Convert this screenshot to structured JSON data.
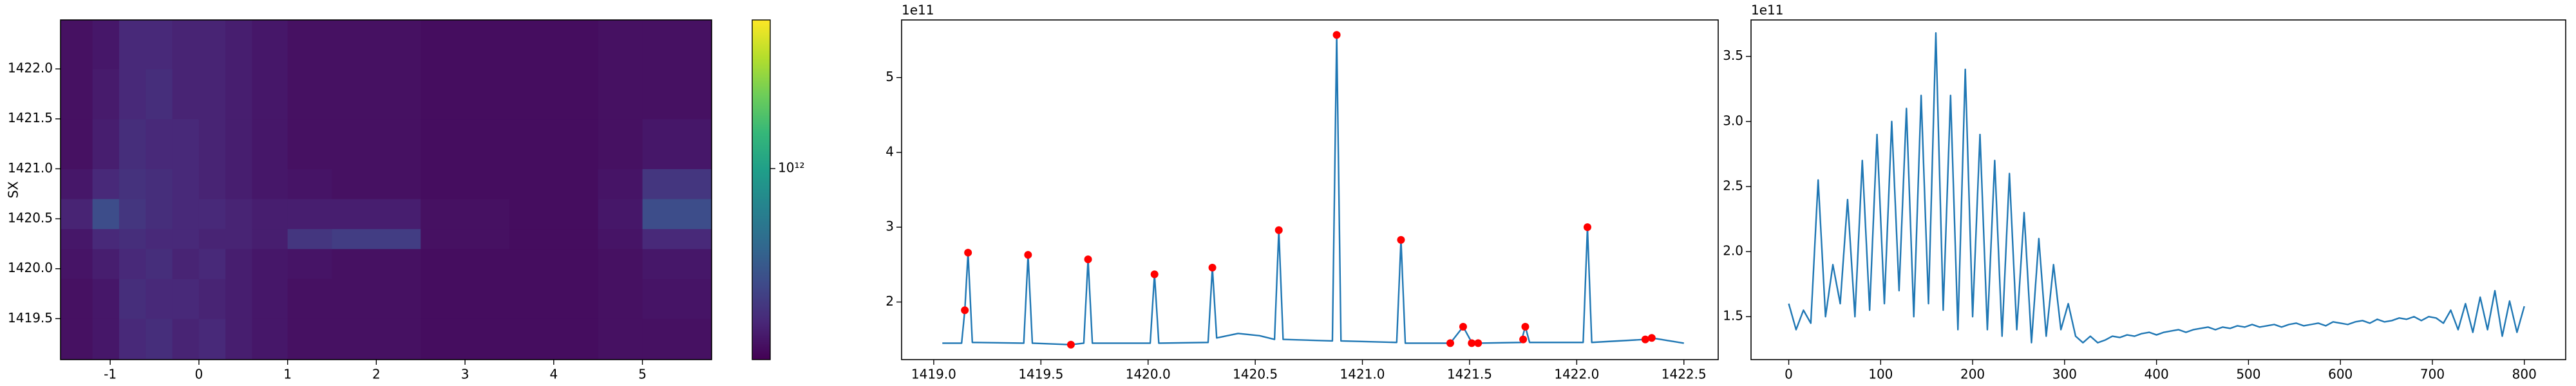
{
  "chart_data": [
    {
      "type": "heatmap",
      "ylabel": "SX",
      "colormap": "viridis",
      "log_color": true,
      "x_edges": [
        -1.56,
        -1.2,
        -0.9,
        -0.6,
        -0.3,
        0,
        0.3,
        0.6,
        1.0,
        1.5,
        2.5,
        3.5,
        4.5,
        5.0,
        5.78
      ],
      "y_edges": [
        1419.09,
        1419.5,
        1419.9,
        1420.2,
        1420.4,
        1420.7,
        1421.0,
        1421.5,
        1422.0,
        1422.49
      ],
      "z": [
        [
          120000000000.0,
          130000000000.0,
          160000000000.0,
          170000000000.0,
          150000000000.0,
          160000000000.0,
          140000000000.0,
          130000000000.0,
          120000000000.0,
          120000000000.0,
          115000000000.0,
          115000000000.0,
          120000000000.0,
          120000000000.0
        ],
        [
          120000000000.0,
          130000000000.0,
          170000000000.0,
          160000000000.0,
          160000000000.0,
          150000000000.0,
          140000000000.0,
          130000000000.0,
          120000000000.0,
          120000000000.0,
          115000000000.0,
          115000000000.0,
          120000000000.0,
          125000000000.0
        ],
        [
          125000000000.0,
          140000000000.0,
          160000000000.0,
          170000000000.0,
          150000000000.0,
          160000000000.0,
          140000000000.0,
          130000000000.0,
          125000000000.0,
          120000000000.0,
          115000000000.0,
          115000000000.0,
          120000000000.0,
          130000000000.0
        ],
        [
          130000000000.0,
          160000000000.0,
          170000000000.0,
          160000000000.0,
          160000000000.0,
          150000000000.0,
          150000000000.0,
          140000000000.0,
          190000000000.0,
          210000000000.0,
          120000000000.0,
          115000000000.0,
          125000000000.0,
          160000000000.0
        ],
        [
          150000000000.0,
          260000000000.0,
          190000000000.0,
          170000000000.0,
          160000000000.0,
          160000000000.0,
          150000000000.0,
          140000000000.0,
          140000000000.0,
          140000000000.0,
          120000000000.0,
          115000000000.0,
          130000000000.0,
          260000000000.0
        ],
        [
          130000000000.0,
          160000000000.0,
          180000000000.0,
          170000000000.0,
          160000000000.0,
          150000000000.0,
          140000000000.0,
          130000000000.0,
          125000000000.0,
          120000000000.0,
          115000000000.0,
          115000000000.0,
          125000000000.0,
          190000000000.0
        ],
        [
          120000000000.0,
          140000000000.0,
          170000000000.0,
          160000000000.0,
          160000000000.0,
          150000000000.0,
          140000000000.0,
          130000000000.0,
          120000000000.0,
          120000000000.0,
          115000000000.0,
          115000000000.0,
          120000000000.0,
          130000000000.0
        ],
        [
          120000000000.0,
          135000000000.0,
          160000000000.0,
          170000000000.0,
          150000000000.0,
          150000000000.0,
          140000000000.0,
          130000000000.0,
          120000000000.0,
          120000000000.0,
          115000000000.0,
          115000000000.0,
          120000000000.0,
          120000000000.0
        ],
        [
          120000000000.0,
          130000000000.0,
          160000000000.0,
          160000000000.0,
          150000000000.0,
          150000000000.0,
          140000000000.0,
          130000000000.0,
          120000000000.0,
          120000000000.0,
          115000000000.0,
          115000000000.0,
          120000000000.0,
          120000000000.0
        ]
      ],
      "xlim": [
        -1.56,
        5.78
      ],
      "ylim": [
        1419.09,
        1422.49
      ],
      "xticks": [
        -1,
        0,
        1,
        2,
        3,
        4,
        5
      ],
      "yticks": [
        1419.5,
        {
          "value": 1420,
          "label": "1420.0"
        },
        1420.5,
        {
          "value": 1421,
          "label": "1421.0"
        },
        1421.5,
        {
          "value": 1422,
          "label": "1422.0"
        }
      ],
      "clim": [
        100000000000.0,
        6000000000000.0
      ],
      "cticks": [
        {
          "value": 1000000000000.0,
          "label": "10¹²"
        }
      ]
    },
    {
      "type": "line",
      "offset_label": "1e11",
      "xlim": [
        1418.85,
        1422.66
      ],
      "ylim": [
        1.23,
        5.77
      ],
      "xticks": [
        {
          "value": 1419,
          "label": "1419.0"
        },
        1419.5,
        {
          "value": 1420,
          "label": "1420.0"
        },
        1420.5,
        {
          "value": 1421,
          "label": "1421.0"
        },
        1421.5,
        {
          "value": 1422,
          "label": "1422.0"
        },
        1422.5
      ],
      "yticks": [
        2,
        3,
        4,
        5
      ],
      "series": [
        {
          "style": "line",
          "color": "#1f77b4",
          "x": [
            1419.04,
            1419.13,
            1419.145,
            1419.16,
            1419.18,
            1419.42,
            1419.44,
            1419.46,
            1419.64,
            1419.7,
            1419.72,
            1419.74,
            1420.01,
            1420.03,
            1420.05,
            1420.28,
            1420.3,
            1420.32,
            1420.42,
            1420.52,
            1420.59,
            1420.61,
            1420.63,
            1420.86,
            1420.88,
            1420.9,
            1421.16,
            1421.18,
            1421.2,
            1421.41,
            1421.47,
            1421.51,
            1421.54,
            1421.74,
            1421.76,
            1421.78,
            1422.03,
            1422.05,
            1422.07,
            1422.32,
            1422.35,
            1422.5
          ],
          "values": [
            1.45,
            1.45,
            1.89,
            2.66,
            1.46,
            1.45,
            2.63,
            1.45,
            1.43,
            1.45,
            2.57,
            1.45,
            1.45,
            2.37,
            1.45,
            1.46,
            2.46,
            1.52,
            1.58,
            1.55,
            1.5,
            2.96,
            1.5,
            1.48,
            5.57,
            1.48,
            1.46,
            2.83,
            1.45,
            1.45,
            1.67,
            1.46,
            1.45,
            1.46,
            1.67,
            1.46,
            1.46,
            3.0,
            1.46,
            1.5,
            1.52,
            1.45
          ]
        },
        {
          "style": "markers",
          "color": "#ff0000",
          "x": [
            1419.145,
            1419.16,
            1419.44,
            1419.64,
            1419.72,
            1420.03,
            1420.3,
            1420.61,
            1420.88,
            1421.18,
            1421.41,
            1421.47,
            1421.51,
            1421.54,
            1421.75,
            1421.76,
            1422.05,
            1422.32,
            1422.35
          ],
          "values": [
            1.89,
            2.66,
            2.63,
            1.43,
            2.57,
            2.37,
            2.46,
            2.96,
            5.57,
            2.83,
            1.45,
            1.67,
            1.45,
            1.45,
            1.5,
            1.67,
            3.0,
            1.5,
            1.52
          ]
        }
      ]
    },
    {
      "type": "line",
      "offset_label": "1e11",
      "xlim": [
        -41,
        845
      ],
      "ylim": [
        1.17,
        3.78
      ],
      "xticks": [
        0,
        100,
        200,
        300,
        400,
        500,
        600,
        700,
        800
      ],
      "yticks": [
        1.5,
        {
          "value": 2,
          "label": "2.0"
        },
        2.5,
        {
          "value": 3,
          "label": "3.0"
        },
        3.5
      ],
      "series": [
        {
          "style": "line",
          "color": "#1f77b4",
          "x": [
            0,
            8,
            16,
            24,
            32,
            40,
            48,
            56,
            64,
            72,
            80,
            88,
            96,
            104,
            112,
            120,
            128,
            136,
            144,
            152,
            160,
            168,
            176,
            184,
            192,
            200,
            208,
            216,
            224,
            232,
            240,
            248,
            256,
            264,
            272,
            280,
            288,
            296,
            304,
            312,
            320,
            328,
            336,
            344,
            352,
            360,
            368,
            376,
            384,
            392,
            400,
            408,
            416,
            424,
            432,
            440,
            448,
            456,
            464,
            472,
            480,
            488,
            496,
            504,
            512,
            520,
            528,
            536,
            544,
            552,
            560,
            568,
            576,
            584,
            592,
            600,
            608,
            616,
            624,
            632,
            640,
            648,
            656,
            664,
            672,
            680,
            688,
            696,
            704,
            712,
            720,
            728,
            736,
            744,
            752,
            760,
            768,
            776,
            784,
            792,
            800
          ],
          "values": [
            1.6,
            1.4,
            1.55,
            1.45,
            2.55,
            1.5,
            1.9,
            1.6,
            2.4,
            1.5,
            2.7,
            1.55,
            2.9,
            1.6,
            3.0,
            1.7,
            3.1,
            1.5,
            3.2,
            1.6,
            3.68,
            1.55,
            3.2,
            1.4,
            3.4,
            1.5,
            2.9,
            1.4,
            2.7,
            1.35,
            2.6,
            1.4,
            2.3,
            1.3,
            2.1,
            1.35,
            1.9,
            1.4,
            1.6,
            1.35,
            1.3,
            1.35,
            1.3,
            1.32,
            1.35,
            1.34,
            1.36,
            1.35,
            1.37,
            1.38,
            1.36,
            1.38,
            1.39,
            1.4,
            1.38,
            1.4,
            1.41,
            1.42,
            1.4,
            1.42,
            1.41,
            1.43,
            1.42,
            1.44,
            1.42,
            1.43,
            1.44,
            1.42,
            1.44,
            1.45,
            1.43,
            1.44,
            1.45,
            1.43,
            1.46,
            1.45,
            1.44,
            1.46,
            1.47,
            1.45,
            1.48,
            1.46,
            1.47,
            1.49,
            1.48,
            1.5,
            1.47,
            1.5,
            1.49,
            1.45,
            1.55,
            1.4,
            1.6,
            1.38,
            1.65,
            1.4,
            1.7,
            1.35,
            1.62,
            1.38,
            1.58
          ]
        }
      ]
    }
  ]
}
